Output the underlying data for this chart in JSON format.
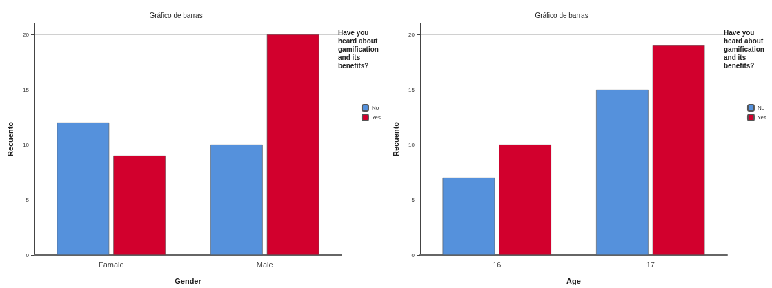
{
  "chart_data": [
    {
      "type": "bar",
      "title": "Gráfico de barras",
      "xlabel": "Gender",
      "ylabel": "Recuento",
      "legend_title": "Have you heard about gamification and its benefits?",
      "categories": [
        "Famale",
        "Male"
      ],
      "series": [
        {
          "name": "No",
          "color": "#5591dc",
          "values": [
            12,
            10
          ]
        },
        {
          "name": "Yes",
          "color": "#d2002d",
          "values": [
            9,
            20
          ]
        }
      ],
      "ylim": [
        0,
        21
      ],
      "yticks": [
        0,
        5,
        10,
        15,
        20
      ],
      "grid": "y",
      "legend": "top right"
    },
    {
      "type": "bar",
      "title": "Gráfico de barras",
      "xlabel": "Age",
      "ylabel": "Recuento",
      "legend_title": "Have you heard about gamification and its benefits?",
      "categories": [
        "16",
        "17"
      ],
      "series": [
        {
          "name": "No",
          "color": "#5591dc",
          "values": [
            7,
            15
          ]
        },
        {
          "name": "Yes",
          "color": "#d2002d",
          "values": [
            10,
            19
          ]
        }
      ],
      "ylim": [
        0,
        21
      ],
      "yticks": [
        0,
        5,
        10,
        15,
        20
      ],
      "grid": "y",
      "legend": "top right"
    }
  ]
}
